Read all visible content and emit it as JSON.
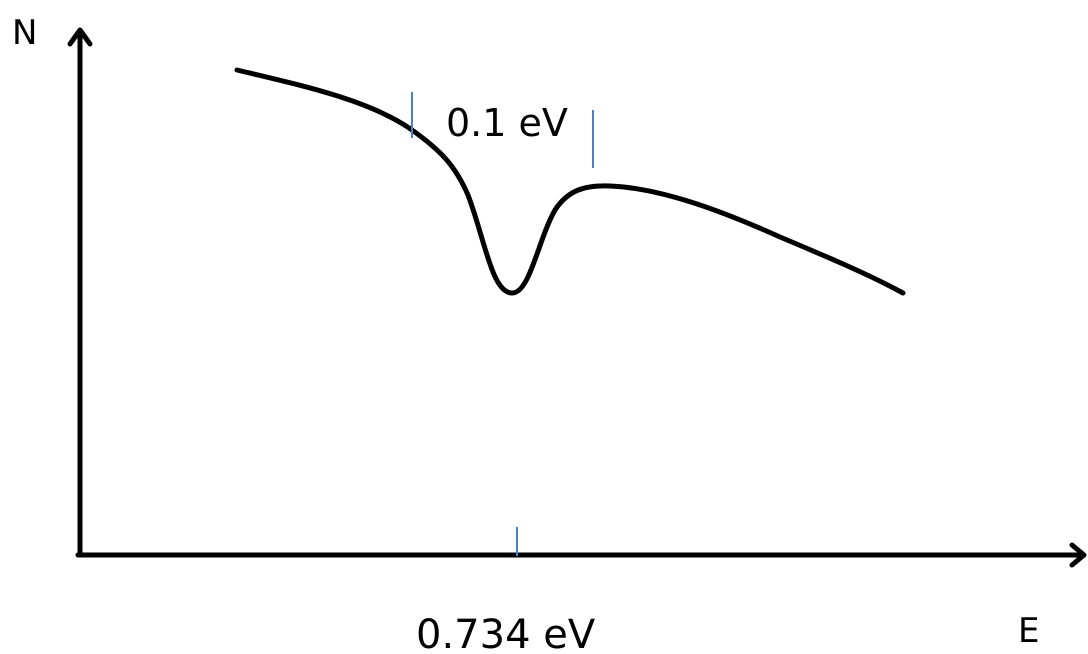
{
  "labels": {
    "y_axis": "N",
    "x_axis": "E",
    "width_annotation": "0.1 eV",
    "center_annotation": "0.734 eV"
  },
  "colors": {
    "axis": "#000000",
    "curve": "#000000",
    "marker": "#4a7fc1",
    "background": "#ffffff"
  }
}
